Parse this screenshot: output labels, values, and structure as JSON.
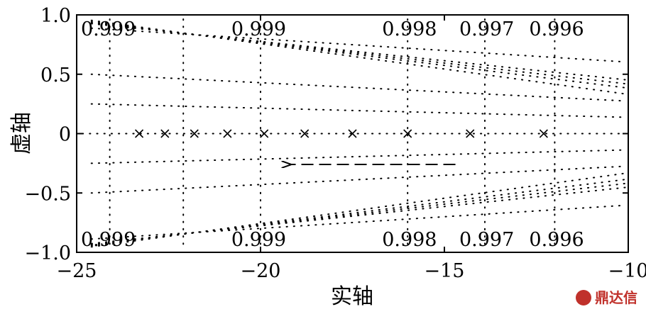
{
  "chart_data": {
    "type": "scatter",
    "xlabel": "实轴",
    "ylabel": "虚轴",
    "xlim": [
      -25,
      -10
    ],
    "ylim": [
      -1,
      1
    ],
    "xticks": [
      -25,
      -20,
      -15,
      -10
    ],
    "xtick_labels": [
      "−25",
      "−20",
      "−15",
      "−10"
    ],
    "yticks": [
      -1,
      -0.5,
      0,
      0.5,
      1
    ],
    "ytick_labels": [
      "−1.0",
      "−0.5",
      "0",
      "0.5",
      "1.0"
    ],
    "grid": "dotted damping-ratio grid",
    "poles": {
      "marker": "x",
      "x": [
        -23.3,
        -22.6,
        -21.8,
        -20.9,
        -19.9,
        -18.8,
        -17.5,
        -16.0,
        -14.3,
        -12.3
      ],
      "y": [
        0,
        0,
        0,
        0,
        0,
        0,
        0,
        0,
        0,
        0
      ]
    },
    "damping_grid_x": [
      -24.1,
      -22.1,
      -20.0,
      -16.0,
      -13.9,
      -12.0
    ],
    "damping_labels": {
      "top": [
        {
          "text": "0.999",
          "x": -24.4
        },
        {
          "text": "0.999",
          "x": -20.1
        },
        {
          "text": "0.998",
          "x": -16.0
        },
        {
          "text": "0.997",
          "x": -13.9
        },
        {
          "text": "0.996",
          "x": -12.0
        }
      ],
      "bottom": [
        {
          "text": "0.999",
          "x": -24.4
        },
        {
          "text": "0.999",
          "x": -20.1
        },
        {
          "text": "0.998",
          "x": -16.0
        },
        {
          "text": "0.997",
          "x": -13.9
        },
        {
          "text": "0.996",
          "x": -12.0
        }
      ]
    },
    "annotation_arrow": {
      "style": "dashed",
      "from": [
        -14.7,
        -0.26
      ],
      "to": [
        -19.2,
        -0.26
      ]
    }
  },
  "watermark": {
    "text": "鼎达信"
  },
  "colors": {
    "axis": "#000000",
    "grid": "#000000",
    "watermark": "#c0312b"
  }
}
